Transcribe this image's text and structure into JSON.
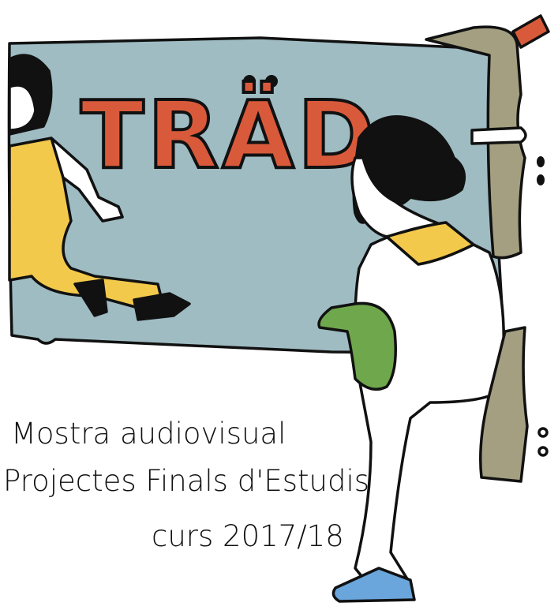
{
  "poster": {
    "title": "TRÄD",
    "lines": [
      "Mostra audiovisual",
      "Projectes Finals d'Estudis",
      "curs 2017/18"
    ]
  }
}
